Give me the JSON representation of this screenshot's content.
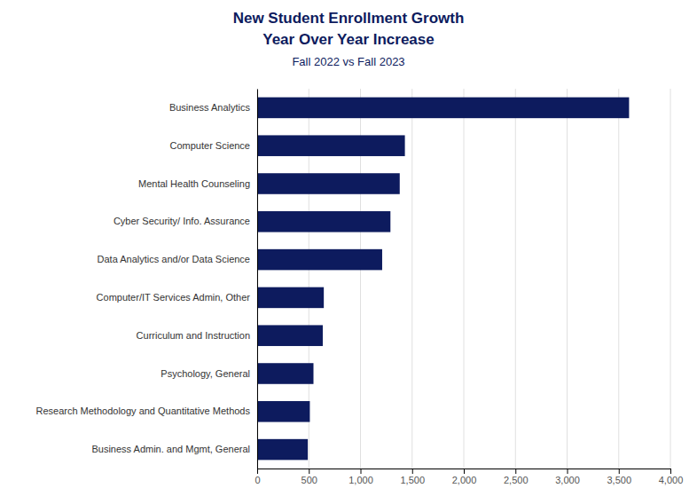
{
  "chart_data": {
    "type": "bar",
    "orientation": "horizontal",
    "title": "New Student Enrollment Growth\nYear Over Year Increase",
    "subtitle": "Fall 2022 vs Fall 2023",
    "categories": [
      "Business Admin. and Mgmt, General",
      "Research Methodology and Quantitative Methods",
      "Psychology, General",
      "Curriculum and Instruction",
      "Computer/IT Services Admin, Other",
      "Data Analytics and/or Data Science",
      "Cyber Security/ Info. Assurance",
      "Mental Health Counseling",
      "Computer Science",
      "Business Analytics"
    ],
    "values": [
      490,
      510,
      545,
      635,
      645,
      1210,
      1290,
      1380,
      1430,
      3600
    ],
    "color": "#0d1b5e",
    "xlim": [
      0,
      4000
    ],
    "xticks": [
      0,
      500,
      {
        "value": 1000,
        "label": "1,000"
      },
      {
        "value": 1500,
        "label": "1,500"
      },
      {
        "value": 2000,
        "label": "2,000"
      },
      {
        "value": 2500,
        "label": "2,500"
      },
      {
        "value": 3000,
        "label": "3,000"
      },
      {
        "value": 3500,
        "label": "3,500"
      },
      {
        "value": 4000,
        "label": "4,000"
      }
    ],
    "grid": true
  }
}
